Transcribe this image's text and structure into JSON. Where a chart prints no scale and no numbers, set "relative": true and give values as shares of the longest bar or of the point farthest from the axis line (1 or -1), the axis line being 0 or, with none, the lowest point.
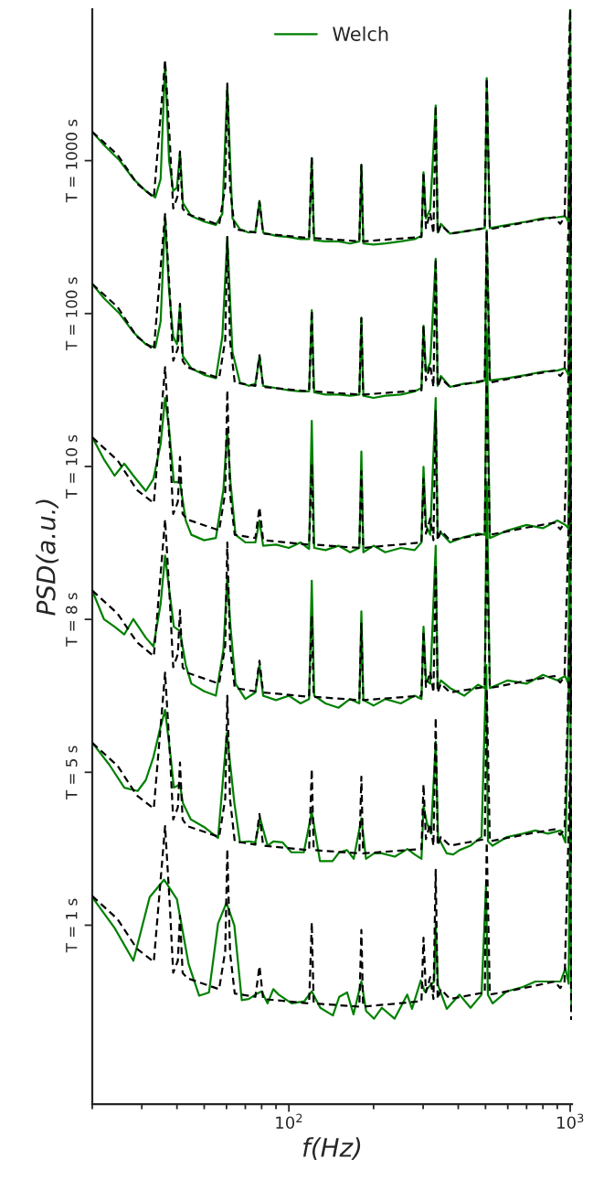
{
  "chart_data": {
    "type": "line",
    "xlabel": "f(Hz)",
    "ylabel": "PSD(a.u.)",
    "log": "x",
    "legend": "top",
    "marker": "none",
    "relative": true,
    "xlim": [
      20,
      1015
    ],
    "xticks": [
      {
        "value": 20,
        "label": null
      },
      {
        "value": 30,
        "label": null
      },
      {
        "value": 40,
        "label": null
      },
      {
        "value": 50,
        "label": null
      },
      {
        "value": 60,
        "label": null
      },
      {
        "value": 70,
        "label": null
      },
      {
        "value": 80,
        "label": null
      },
      {
        "value": 90,
        "label": null
      },
      {
        "value": 100,
        "label": "10$^{2}$"
      },
      {
        "value": 200,
        "label": null
      },
      {
        "value": 300,
        "label": null
      },
      {
        "value": 400,
        "label": null
      },
      {
        "value": 500,
        "label": null
      },
      {
        "value": 600,
        "label": null
      },
      {
        "value": 700,
        "label": null
      },
      {
        "value": 800,
        "label": null
      },
      {
        "value": 900,
        "label": null
      },
      {
        "value": 1000,
        "label": "10$^{3}$"
      }
    ],
    "annotations": [
      "T = 1 s",
      "T = 5 s",
      "T = 8 s",
      "T = 10 s",
      "T = 100 s",
      "T = 1000 s"
    ],
    "series": [
      {
        "name": "Welch",
        "color": "#008000",
        "line_style": "solid",
        "x": [
          20,
          22,
          25,
          28,
          31,
          33.5,
          35,
          36.3,
          37.5,
          38.8,
          40,
          41,
          42,
          45,
          50,
          55,
          58,
          60.4,
          63,
          67,
          72,
          76,
          78.6,
          81,
          90,
          100,
          110,
          118,
          120.6,
          123,
          135,
          150,
          165,
          178,
          181,
          184,
          200,
          220,
          250,
          280,
          296,
          301,
          307,
          318,
          332.6,
          338,
          347,
          374,
          420,
          470,
          497,
          505,
          518,
          600,
          700,
          800,
          900,
          960,
          985,
          1000,
          1008
        ],
        "values": [
          0.888,
          0.876,
          0.862,
          0.845,
          0.834,
          0.828,
          0.845,
          0.951,
          0.862,
          0.834,
          0.837,
          0.869,
          0.823,
          0.811,
          0.806,
          0.803,
          0.813,
          0.929,
          0.809,
          0.799,
          0.796,
          0.797,
          0.825,
          0.796,
          0.793,
          0.792,
          0.79,
          0.79,
          0.864,
          0.789,
          0.788,
          0.788,
          0.786,
          0.788,
          0.857,
          0.786,
          0.785,
          0.786,
          0.788,
          0.79,
          0.793,
          0.851,
          0.809,
          0.817,
          0.912,
          0.796,
          0.804,
          0.795,
          0.797,
          0.799,
          0.8,
          0.937,
          0.8,
          0.803,
          0.806,
          0.809,
          0.81,
          0.811,
          0.806,
          1.0,
          0.778
        ]
      },
      {
        "color": "#008000",
        "line_style": "solid",
        "x": [
          20,
          22,
          25,
          28,
          31,
          33.5,
          35,
          36.3,
          37.5,
          38.8,
          40,
          41,
          42,
          45,
          50,
          55,
          58,
          60.4,
          63,
          67,
          72,
          76,
          78.6,
          81,
          90,
          100,
          110,
          118,
          120.6,
          123,
          135,
          150,
          165,
          178,
          181,
          184,
          200,
          220,
          250,
          280,
          296,
          301,
          307,
          318,
          332.6,
          338,
          347,
          374,
          420,
          470,
          497,
          505,
          518,
          600,
          700,
          800,
          900,
          960,
          985,
          1000,
          1008
        ],
        "values": [
          0.749,
          0.736,
          0.722,
          0.705,
          0.694,
          0.691,
          0.715,
          0.81,
          0.743,
          0.701,
          0.694,
          0.729,
          0.683,
          0.672,
          0.666,
          0.663,
          0.701,
          0.792,
          0.687,
          0.659,
          0.656,
          0.658,
          0.683,
          0.656,
          0.654,
          0.652,
          0.651,
          0.651,
          0.725,
          0.65,
          0.648,
          0.648,
          0.647,
          0.648,
          0.718,
          0.647,
          0.645,
          0.647,
          0.648,
          0.651,
          0.654,
          0.711,
          0.669,
          0.677,
          0.772,
          0.656,
          0.665,
          0.655,
          0.658,
          0.659,
          0.661,
          0.798,
          0.661,
          0.663,
          0.666,
          0.669,
          0.67,
          0.672,
          0.666,
          0.86,
          0.638
        ]
      },
      {
        "color": "#008000",
        "line_style": "solid",
        "x": [
          20,
          22,
          24,
          26,
          28,
          31,
          33,
          35,
          36.3,
          37.5,
          39,
          41,
          43,
          45,
          50,
          55,
          58.5,
          60.4,
          62,
          64.6,
          70,
          76,
          78.6,
          81,
          90,
          100,
          110,
          118,
          120.6,
          123,
          135,
          150,
          165,
          178,
          181,
          184,
          200,
          220,
          250,
          280,
          296,
          301,
          307,
          318,
          332.6,
          338,
          347,
          374,
          420,
          470,
          497,
          505,
          518,
          600,
          700,
          800,
          900,
          960,
          985,
          1000,
          1008
        ],
        "values": [
          0.609,
          0.589,
          0.574,
          0.585,
          0.574,
          0.56,
          0.571,
          0.603,
          0.645,
          0.617,
          0.568,
          0.568,
          0.533,
          0.52,
          0.515,
          0.517,
          0.561,
          0.616,
          0.568,
          0.52,
          0.513,
          0.513,
          0.533,
          0.51,
          0.511,
          0.508,
          0.513,
          0.507,
          0.624,
          0.508,
          0.506,
          0.51,
          0.504,
          0.508,
          0.596,
          0.504,
          0.51,
          0.504,
          0.508,
          0.506,
          0.513,
          0.582,
          0.529,
          0.52,
          0.645,
          0.517,
          0.522,
          0.513,
          0.518,
          0.521,
          0.52,
          0.708,
          0.517,
          0.524,
          0.529,
          0.526,
          0.533,
          0.529,
          0.526,
          0.721,
          0.499
        ]
      },
      {
        "color": "#008000",
        "line_style": "solid",
        "x": [
          20,
          22,
          24,
          26,
          28,
          31,
          33,
          35,
          36.3,
          37.5,
          39,
          41,
          43,
          45,
          50,
          55,
          58.5,
          60.4,
          62,
          64.6,
          70,
          76,
          78.6,
          81,
          90,
          100,
          110,
          118,
          120.6,
          123,
          135,
          150,
          165,
          178,
          181,
          184,
          200,
          220,
          250,
          280,
          296,
          301,
          307,
          318,
          332.6,
          338,
          347,
          374,
          420,
          470,
          497,
          505,
          518,
          600,
          700,
          800,
          900,
          960,
          985,
          1000,
          1008
        ],
        "values": [
          0.469,
          0.443,
          0.436,
          0.429,
          0.443,
          0.426,
          0.418,
          0.457,
          0.501,
          0.471,
          0.436,
          0.432,
          0.401,
          0.384,
          0.377,
          0.373,
          0.415,
          0.482,
          0.436,
          0.384,
          0.37,
          0.376,
          0.401,
          0.373,
          0.369,
          0.373,
          0.366,
          0.37,
          0.478,
          0.373,
          0.366,
          0.362,
          0.37,
          0.366,
          0.45,
          0.369,
          0.364,
          0.37,
          0.366,
          0.373,
          0.37,
          0.436,
          0.387,
          0.384,
          0.51,
          0.38,
          0.387,
          0.38,
          0.373,
          0.383,
          0.38,
          0.568,
          0.38,
          0.387,
          0.384,
          0.392,
          0.387,
          0.391,
          0.384,
          0.581,
          0.359
        ]
      },
      {
        "color": "#008000",
        "line_style": "solid",
        "x": [
          20,
          23,
          26,
          29,
          31,
          33,
          35,
          36.3,
          38,
          39,
          41,
          42,
          44.8,
          50,
          56,
          60.2,
          64,
          67,
          72,
          76,
          79,
          84,
          88,
          95,
          102,
          113,
          120.6,
          129,
          143,
          151,
          161,
          170,
          181,
          188,
          201,
          214,
          238,
          264,
          280,
          296,
          301,
          310,
          320,
          332.6,
          339,
          364,
          384,
          404,
          442,
          484,
          503,
          510,
          530,
          596,
          679,
          752,
          834,
          925,
          962,
          1000,
          1008
        ],
        "values": [
          0.33,
          0.31,
          0.289,
          0.286,
          0.296,
          0.317,
          0.345,
          0.36,
          0.317,
          0.289,
          0.292,
          0.275,
          0.26,
          0.253,
          0.243,
          0.339,
          0.275,
          0.239,
          0.24,
          0.239,
          0.261,
          0.236,
          0.24,
          0.239,
          0.23,
          0.23,
          0.267,
          0.222,
          0.222,
          0.23,
          0.232,
          0.224,
          0.261,
          0.224,
          0.229,
          0.229,
          0.226,
          0.233,
          0.228,
          0.224,
          0.272,
          0.256,
          0.247,
          0.331,
          0.244,
          0.229,
          0.228,
          0.232,
          0.236,
          0.244,
          0.401,
          0.24,
          0.236,
          0.244,
          0.247,
          0.25,
          0.247,
          0.25,
          0.239,
          0.44,
          0.219
        ]
      },
      {
        "color": "#008000",
        "line_style": "solid",
        "x": [
          20,
          24,
          28,
          32,
          36,
          40,
          44,
          48,
          52,
          56,
          60,
          64,
          68,
          72,
          76,
          80,
          84,
          88,
          92,
          102.3,
          113.5,
          120.6,
          129.3,
          143.4,
          151,
          161.1,
          169.7,
          181,
          188.2,
          200.8,
          214.1,
          237.5,
          263.5,
          274,
          294.4,
          303.8,
          320.1,
          328.4,
          332.6,
          338.7,
          364.1,
          404.1,
          442.4,
          484,
          502.1,
          509.8,
          530.2,
          595.7,
          678.5,
          752.3,
          833.8,
          925,
          961.6,
          987.4,
          1000,
          1010
        ],
        "values": [
          0.189,
          0.161,
          0.131,
          0.189,
          0.205,
          0.187,
          0.128,
          0.099,
          0.102,
          0.165,
          0.184,
          0.163,
          0.095,
          0.096,
          0.1,
          0.103,
          0.092,
          0.105,
          0.1,
          0.092,
          0.094,
          0.103,
          0.088,
          0.081,
          0.098,
          0.102,
          0.082,
          0.112,
          0.085,
          0.078,
          0.088,
          0.078,
          0.1,
          0.087,
          0.113,
          0.103,
          0.109,
          0.112,
          0.165,
          0.109,
          0.087,
          0.1,
          0.088,
          0.1,
          0.2,
          0.1,
          0.092,
          0.103,
          0.107,
          0.112,
          0.112,
          0.112,
          0.124,
          0.11,
          0.272,
          0.085
        ]
      },
      {
        "color": "#000000",
        "line_style": "dashed",
        "x": [
          20,
          24.6,
          28.8,
          33.1,
          36.3,
          37.7,
          38.8,
          40.3,
          41.0,
          41.9,
          43.5,
          56.5,
          59.4,
          60.4,
          61.8,
          64.2,
          76.0,
          78.6,
          81.0,
          118,
          120.6,
          122.5,
          178,
          181,
          183.6,
          296,
          301,
          307,
          318,
          326.5,
          332.6,
          338,
          347,
          374,
          497,
          505,
          518,
          715,
          880,
          922,
          955,
          1000,
          1008
        ],
        "values": [
          0.888,
          0.867,
          0.841,
          0.828,
          0.953,
          0.881,
          0.818,
          0.83,
          0.87,
          0.818,
          0.813,
          0.803,
          0.838,
          0.932,
          0.837,
          0.799,
          0.796,
          0.824,
          0.795,
          0.791,
          0.865,
          0.791,
          0.788,
          0.858,
          0.788,
          0.792,
          0.851,
          0.8,
          0.814,
          0.795,
          0.912,
          0.795,
          0.803,
          0.795,
          0.8,
          0.937,
          0.799,
          0.806,
          0.81,
          0.804,
          0.81,
          1.0,
          0.775
        ]
      },
      {
        "color": "#000000",
        "line_style": "dashed",
        "x": [
          20,
          24.6,
          28.8,
          33.1,
          36.3,
          37.7,
          38.8,
          40.3,
          41.0,
          41.9,
          43.5,
          56.5,
          59.4,
          60.4,
          61.8,
          64.2,
          76.0,
          78.6,
          81.0,
          118,
          120.6,
          122.5,
          178,
          181,
          183.6,
          296,
          301,
          307,
          318,
          326.5,
          332.6,
          338,
          347,
          374,
          497,
          505,
          518,
          715,
          880,
          922,
          955,
          1000,
          1008
        ],
        "values": [
          0.749,
          0.728,
          0.701,
          0.689,
          0.813,
          0.742,
          0.679,
          0.69,
          0.731,
          0.679,
          0.673,
          0.663,
          0.698,
          0.792,
          0.697,
          0.659,
          0.656,
          0.684,
          0.655,
          0.651,
          0.725,
          0.651,
          0.648,
          0.718,
          0.648,
          0.652,
          0.711,
          0.661,
          0.675,
          0.655,
          0.772,
          0.655,
          0.663,
          0.655,
          0.661,
          0.798,
          0.659,
          0.666,
          0.67,
          0.665,
          0.67,
          0.86,
          0.636
        ]
      },
      {
        "color": "#000000",
        "line_style": "dashed",
        "x": [
          20,
          24.6,
          28.8,
          33.1,
          36.3,
          37.7,
          38.8,
          40.3,
          41.0,
          41.9,
          43.5,
          56.5,
          59.4,
          60.4,
          61.8,
          64.2,
          76.0,
          78.6,
          81.0,
          118,
          120.6,
          122.5,
          178,
          181,
          183.6,
          296,
          301,
          307,
          318,
          326.5,
          332.6,
          338,
          347,
          374,
          497,
          505,
          518,
          715,
          880,
          922,
          955,
          1000,
          1008
        ],
        "values": [
          0.609,
          0.588,
          0.561,
          0.549,
          0.673,
          0.602,
          0.539,
          0.55,
          0.591,
          0.539,
          0.534,
          0.524,
          0.559,
          0.652,
          0.557,
          0.52,
          0.517,
          0.545,
          0.515,
          0.511,
          0.585,
          0.511,
          0.508,
          0.578,
          0.508,
          0.513,
          0.571,
          0.521,
          0.535,
          0.515,
          0.633,
          0.515,
          0.524,
          0.515,
          0.521,
          0.658,
          0.52,
          0.527,
          0.531,
          0.525,
          0.531,
          0.721,
          0.496
        ]
      },
      {
        "color": "#000000",
        "line_style": "dashed",
        "x": [
          20,
          24.6,
          28.8,
          33.1,
          36.3,
          37.7,
          38.8,
          40.3,
          41.0,
          41.9,
          43.5,
          56.5,
          59.4,
          60.4,
          61.8,
          64.2,
          76.0,
          78.6,
          81.0,
          118,
          120.6,
          122.5,
          178,
          181,
          183.6,
          296,
          301,
          307,
          318,
          326.5,
          332.6,
          338,
          347,
          374,
          497,
          505,
          518,
          715,
          880,
          922,
          955,
          1000,
          1008
        ],
        "values": [
          0.469,
          0.448,
          0.422,
          0.409,
          0.534,
          0.462,
          0.399,
          0.411,
          0.451,
          0.399,
          0.394,
          0.384,
          0.419,
          0.513,
          0.418,
          0.38,
          0.377,
          0.405,
          0.376,
          0.372,
          0.446,
          0.372,
          0.369,
          0.439,
          0.369,
          0.373,
          0.432,
          0.381,
          0.395,
          0.376,
          0.493,
          0.376,
          0.384,
          0.376,
          0.381,
          0.518,
          0.38,
          0.387,
          0.391,
          0.385,
          0.391,
          0.581,
          0.356
        ]
      },
      {
        "color": "#000000",
        "line_style": "dashed",
        "x": [
          20,
          24.6,
          28.8,
          33.1,
          36.3,
          37.7,
          38.8,
          40.3,
          41.0,
          41.9,
          43.5,
          56.5,
          59.4,
          60.4,
          61.8,
          64.2,
          76.0,
          78.6,
          81.0,
          118,
          120.6,
          122.5,
          178,
          181,
          183.6,
          296,
          301,
          307,
          318,
          326.5,
          332.6,
          338,
          347,
          374,
          497,
          505,
          518,
          715,
          880,
          922,
          955,
          1000,
          1008
        ],
        "values": [
          0.33,
          0.309,
          0.282,
          0.27,
          0.394,
          0.323,
          0.26,
          0.271,
          0.312,
          0.26,
          0.254,
          0.244,
          0.279,
          0.373,
          0.278,
          0.24,
          0.237,
          0.265,
          0.236,
          0.232,
          0.306,
          0.232,
          0.229,
          0.299,
          0.229,
          0.233,
          0.292,
          0.242,
          0.256,
          0.236,
          0.353,
          0.236,
          0.244,
          0.236,
          0.242,
          0.379,
          0.24,
          0.247,
          0.251,
          0.246,
          0.251,
          0.441,
          0.217
        ]
      },
      {
        "color": "#000000",
        "line_style": "dashed",
        "x": [
          20,
          24.6,
          28.8,
          33.1,
          36.3,
          37.7,
          38.8,
          40.3,
          41.0,
          41.9,
          43.5,
          56.5,
          59.4,
          60.4,
          61.8,
          64.2,
          76.0,
          78.6,
          81.0,
          118,
          120.6,
          122.5,
          178,
          181,
          183.6,
          296,
          301,
          307,
          318,
          326.5,
          332.6,
          338,
          347,
          374,
          497,
          505,
          518,
          715,
          880,
          922,
          955,
          1000,
          1008
        ],
        "values": [
          0.19,
          0.169,
          0.142,
          0.13,
          0.254,
          0.183,
          0.12,
          0.131,
          0.172,
          0.12,
          0.115,
          0.105,
          0.14,
          0.233,
          0.138,
          0.101,
          0.098,
          0.126,
          0.096,
          0.092,
          0.166,
          0.092,
          0.089,
          0.159,
          0.089,
          0.094,
          0.152,
          0.102,
          0.116,
          0.096,
          0.214,
          0.096,
          0.105,
          0.096,
          0.102,
          0.239,
          0.1,
          0.107,
          0.112,
          0.106,
          0.112,
          0.302,
          0.077
        ]
      }
    ]
  }
}
